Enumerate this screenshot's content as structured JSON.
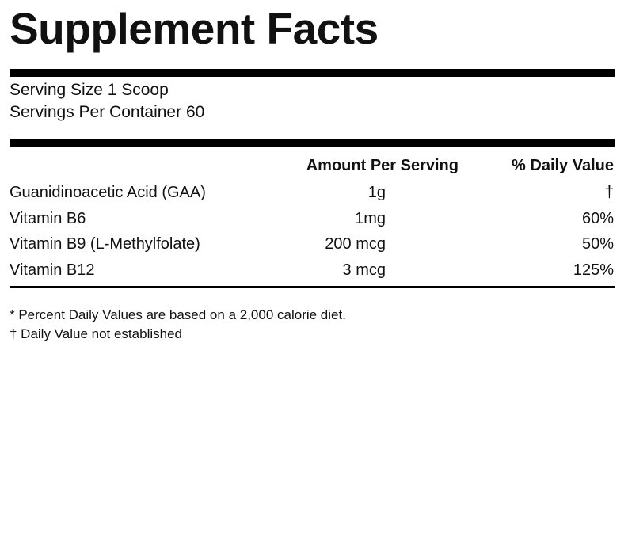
{
  "title": "Supplement Facts",
  "serving": {
    "size": "Serving Size 1 Scoop",
    "per_container": "Servings Per Container 60"
  },
  "table": {
    "header": {
      "amount": "Amount Per Serving",
      "daily_value": "% Daily Value"
    },
    "rows": [
      [
        "Guanidinoacetic Acid (GAA)",
        "1g",
        "†"
      ],
      [
        "Vitamin B6",
        "1mg",
        "60%"
      ],
      [
        "Vitamin B9 (L-Methylfolate)",
        "200 mcg",
        "50%"
      ],
      [
        "Vitamin B12",
        "3 mcg",
        "125%"
      ]
    ]
  },
  "footnotes": [
    "* Percent Daily Values are based on a 2,000 calorie diet.",
    "† Daily Value not established"
  ]
}
